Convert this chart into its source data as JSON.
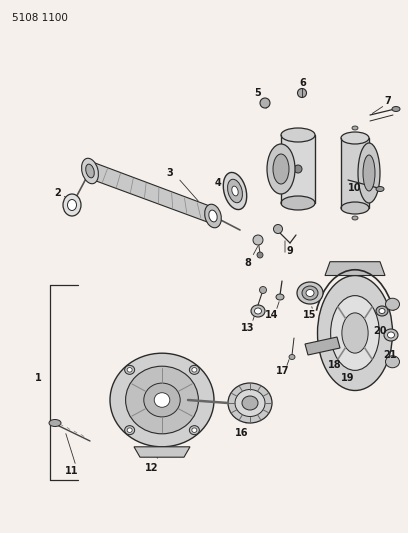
{
  "bg_color": "#f5f0eb",
  "line_color": "#2a2a2a",
  "text_color": "#1a1a1a",
  "header_text": "5108 1100",
  "fig_width": 4.08,
  "fig_height": 5.33,
  "dpi": 100
}
